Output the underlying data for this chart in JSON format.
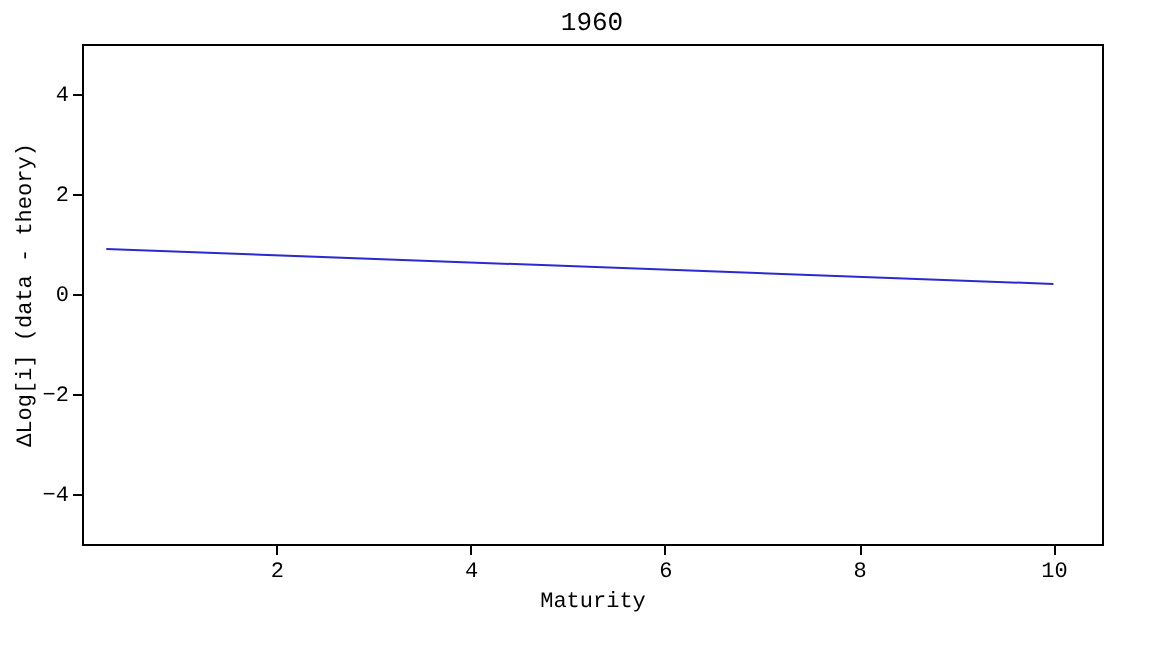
{
  "chart_data": {
    "type": "line",
    "title": "1960",
    "xlabel": "Maturity",
    "ylabel": "ΔLog[i] (data - theory)",
    "x": [
      0.25,
      10
    ],
    "series": [
      {
        "color": "#2a2ad0",
        "values": [
          0.9,
          0.2
        ]
      }
    ],
    "xlim": [
      0,
      10.5
    ],
    "xticks": [
      2,
      4,
      6,
      8,
      10
    ],
    "ylim": [
      -5,
      5
    ],
    "yticks": [
      -4,
      -2,
      0,
      2,
      4
    ],
    "grid": false,
    "legend": false,
    "marker": "none",
    "line_style": "solid"
  }
}
